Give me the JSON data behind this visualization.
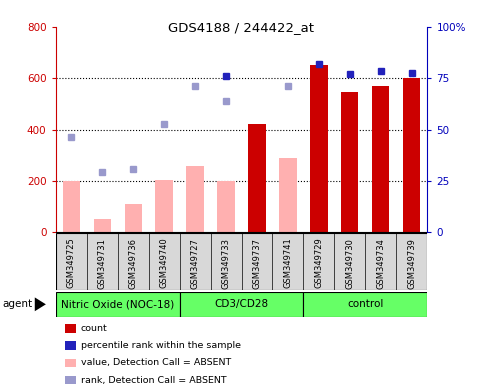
{
  "title": "GDS4188 / 244422_at",
  "samples": [
    "GSM349725",
    "GSM349731",
    "GSM349736",
    "GSM349740",
    "GSM349727",
    "GSM349733",
    "GSM349737",
    "GSM349741",
    "GSM349729",
    "GSM349730",
    "GSM349734",
    "GSM349739"
  ],
  "bar_values": [
    null,
    null,
    null,
    null,
    null,
    null,
    420,
    null,
    650,
    545,
    570,
    600
  ],
  "bar_absent_values": [
    200,
    50,
    110,
    205,
    260,
    200,
    null,
    290,
    null,
    null,
    null,
    null
  ],
  "rank_dots_blue": [
    null,
    null,
    null,
    null,
    null,
    610,
    null,
    null,
    655,
    615,
    630,
    620
  ],
  "rank_dots_absent": [
    370,
    235,
    248,
    420,
    570,
    510,
    null,
    570,
    null,
    null,
    null,
    null
  ],
  "ylim_left": [
    0,
    800
  ],
  "ylim_right": [
    0,
    100
  ],
  "yticks_left": [
    0,
    200,
    400,
    600,
    800
  ],
  "yticks_right": [
    0,
    25,
    50,
    75,
    100
  ],
  "ytick_labels_right": [
    "0",
    "25",
    "50",
    "75",
    "100%"
  ],
  "bar_color_red": "#cc0000",
  "bar_color_absent": "#ffb0b0",
  "dot_color_blue": "#2222bb",
  "dot_color_absent": "#9999cc",
  "left_axis_color": "#cc0000",
  "right_axis_color": "#0000bb",
  "groups": [
    {
      "label": "Nitric Oxide (NOC-18)",
      "start": 0,
      "end": 3
    },
    {
      "label": "CD3/CD28",
      "start": 4,
      "end": 7
    },
    {
      "label": "control",
      "start": 8,
      "end": 11
    }
  ],
  "group_color": "#66ff66",
  "sample_bg_color": "#d8d8d8",
  "agent_label": "agent",
  "legend_items": [
    {
      "label": "count",
      "color": "#cc0000"
    },
    {
      "label": "percentile rank within the sample",
      "color": "#2222bb"
    },
    {
      "label": "value, Detection Call = ABSENT",
      "color": "#ffb0b0"
    },
    {
      "label": "rank, Detection Call = ABSENT",
      "color": "#9999cc"
    }
  ],
  "figsize": [
    4.83,
    3.84
  ],
  "dpi": 100
}
